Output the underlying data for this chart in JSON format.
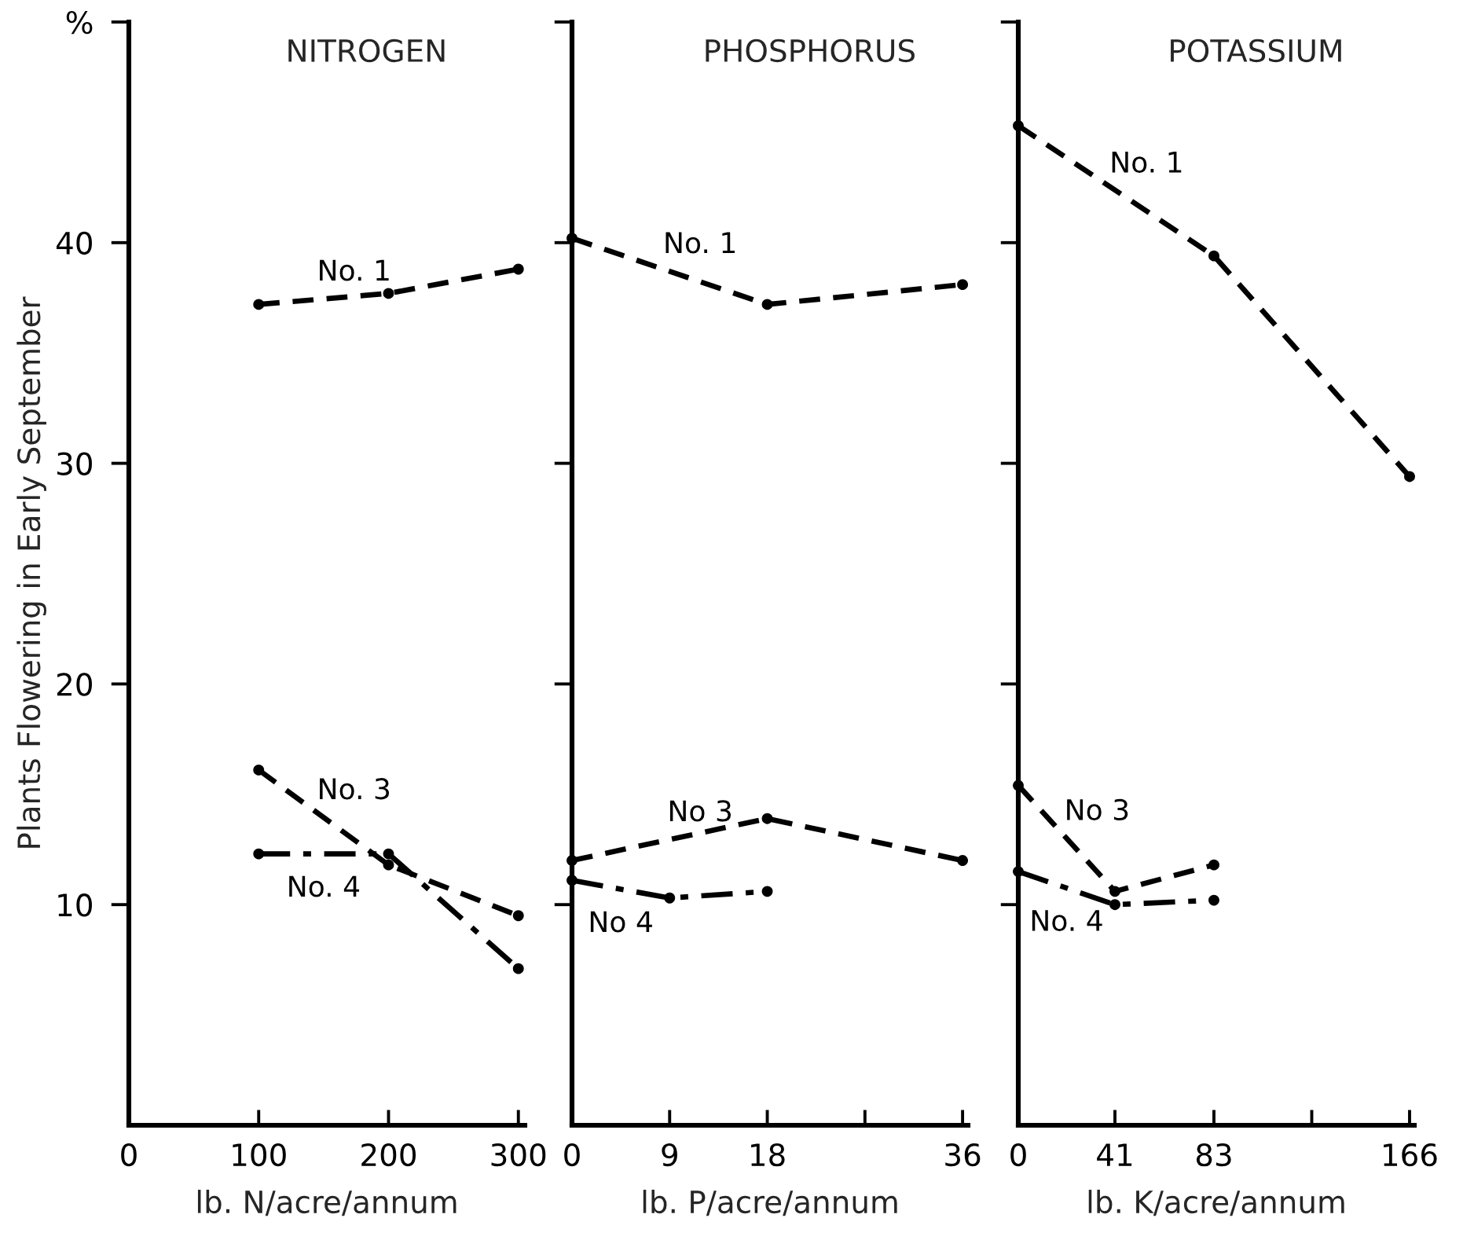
{
  "chart_data": [
    {
      "type": "line",
      "title": "NITROGEN",
      "xlabel": "lb. N/acre/annum",
      "ylabel": "Plants Flowering in Early September",
      "xlim": [
        0,
        305
      ],
      "xticks": [
        0,
        100,
        200,
        300
      ],
      "ylim": [
        0,
        50
      ],
      "yticks": [
        10,
        20,
        30,
        40,
        {
          "value": 50,
          "label": "%"
        }
      ],
      "marker": "circle",
      "grid": false,
      "legend": false,
      "series": [
        {
          "name": "No. 1",
          "color": "#000000",
          "line_style": "dashed",
          "x": [
            100,
            200,
            300
          ],
          "values": [
            37.2,
            37.7,
            38.8
          ]
        },
        {
          "name": "No. 3",
          "color": "#000000",
          "line_style": "dashed",
          "x": [
            100,
            200,
            300
          ],
          "values": [
            16.1,
            11.8,
            9.5
          ]
        },
        {
          "name": "No. 4",
          "color": "#000000",
          "line_style": "dashdot",
          "x": [
            100,
            200,
            300
          ],
          "values": [
            12.3,
            12.3,
            7.1
          ]
        }
      ]
    },
    {
      "type": "line",
      "title": "PHOSPHORUS",
      "xlabel": "lb. P/acre/annum",
      "xlim": [
        0,
        36.5
      ],
      "xticks": [
        0,
        9,
        18,
        {
          "value": 27,
          "label": null
        },
        36
      ],
      "ylim": [
        0,
        50
      ],
      "yticks": [
        {
          "value": 10,
          "label": null
        },
        {
          "value": 20,
          "label": null
        },
        {
          "value": 30,
          "label": null
        },
        {
          "value": 40,
          "label": null
        },
        {
          "value": 50,
          "label": null
        }
      ],
      "tick_labels": "x",
      "marker": "circle",
      "grid": false,
      "legend": false,
      "series": [
        {
          "name": "No. 1",
          "color": "#000000",
          "line_style": "dashed",
          "x": [
            0,
            18,
            36
          ],
          "values": [
            40.2,
            37.2,
            38.1
          ]
        },
        {
          "name": "No 3",
          "color": "#000000",
          "line_style": "dashed",
          "x": [
            0,
            18,
            36
          ],
          "values": [
            12.0,
            13.9,
            12.0
          ]
        },
        {
          "name": "No 4",
          "color": "#000000",
          "line_style": "dashdot",
          "x": [
            0,
            9,
            18
          ],
          "values": [
            11.1,
            10.3,
            10.6
          ]
        }
      ]
    },
    {
      "type": "line",
      "title": "POTASSIUM",
      "xlabel": "lb. K/acre/annum",
      "xlim": [
        0,
        168
      ],
      "xticks": [
        0,
        41,
        83,
        {
          "value": 124.5,
          "label": null
        },
        166
      ],
      "ylim": [
        0,
        50
      ],
      "yticks": [
        {
          "value": 10,
          "label": null
        },
        {
          "value": 20,
          "label": null
        },
        {
          "value": 30,
          "label": null
        },
        {
          "value": 40,
          "label": null
        },
        {
          "value": 50,
          "label": null
        }
      ],
      "tick_labels": "x",
      "marker": "circle",
      "grid": false,
      "legend": false,
      "series": [
        {
          "name": "No. 1",
          "color": "#000000",
          "line_style": "dashed",
          "x": [
            0,
            83,
            166
          ],
          "values": [
            45.3,
            39.4,
            29.4
          ]
        },
        {
          "name": "No 3",
          "color": "#000000",
          "line_style": "dashed",
          "x": [
            0,
            41,
            83
          ],
          "values": [
            15.4,
            10.6,
            11.8
          ]
        },
        {
          "name": "No. 4",
          "color": "#000000",
          "line_style": "dashdot",
          "x": [
            0,
            41,
            83
          ],
          "values": [
            11.5,
            10.0,
            10.2
          ]
        }
      ]
    }
  ]
}
